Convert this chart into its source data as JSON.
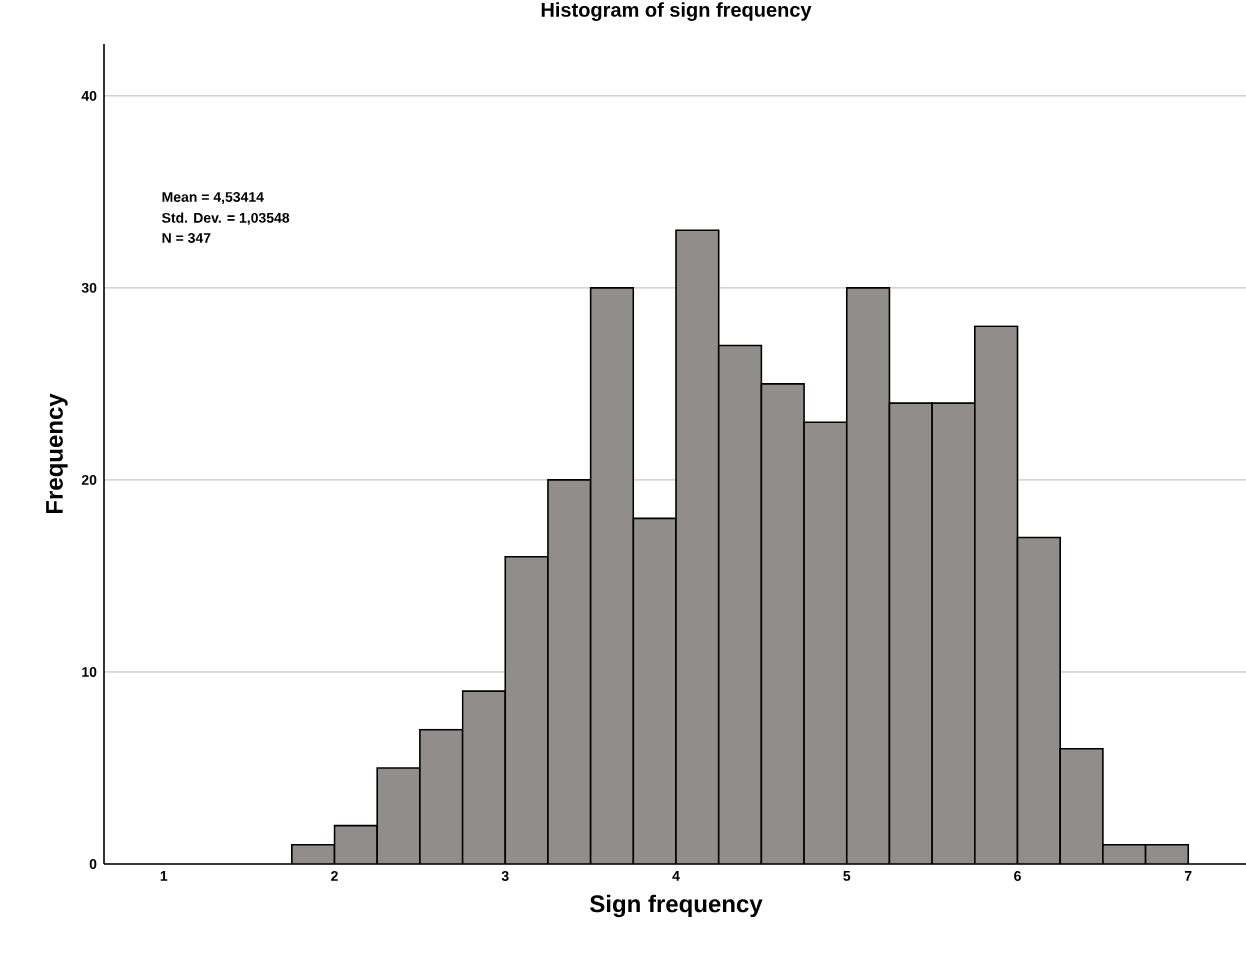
{
  "chart_data": {
    "type": "histogram",
    "title": "Histogram of sign frequency",
    "xlabel": "Sign frequency",
    "ylabel": "Frequency",
    "bins": [
      1.75,
      2.0,
      2.25,
      2.5,
      2.75,
      3.0,
      3.25,
      3.5,
      3.75,
      4.0,
      4.25,
      4.5,
      4.75,
      5.0,
      5.25,
      5.5,
      5.75,
      6.0,
      6.25,
      6.5,
      6.75,
      7.0
    ],
    "values": [
      1,
      2,
      5,
      7,
      9,
      16,
      20,
      30,
      18,
      33,
      27,
      25,
      23,
      30,
      24,
      24,
      28,
      17,
      6,
      1,
      1
    ],
    "color": "#918d8c",
    "xlim": [
      0.65,
      7.35
    ],
    "xticks": [
      1,
      2,
      3,
      4,
      5,
      6,
      7
    ],
    "ylim": [
      0,
      42.7
    ],
    "yticks": [
      0,
      10,
      20,
      30,
      40
    ],
    "grid": "y",
    "annotations": [
      "Mean = 4,53414",
      "Std. Dev. = 1,03548",
      "N = 347"
    ]
  }
}
